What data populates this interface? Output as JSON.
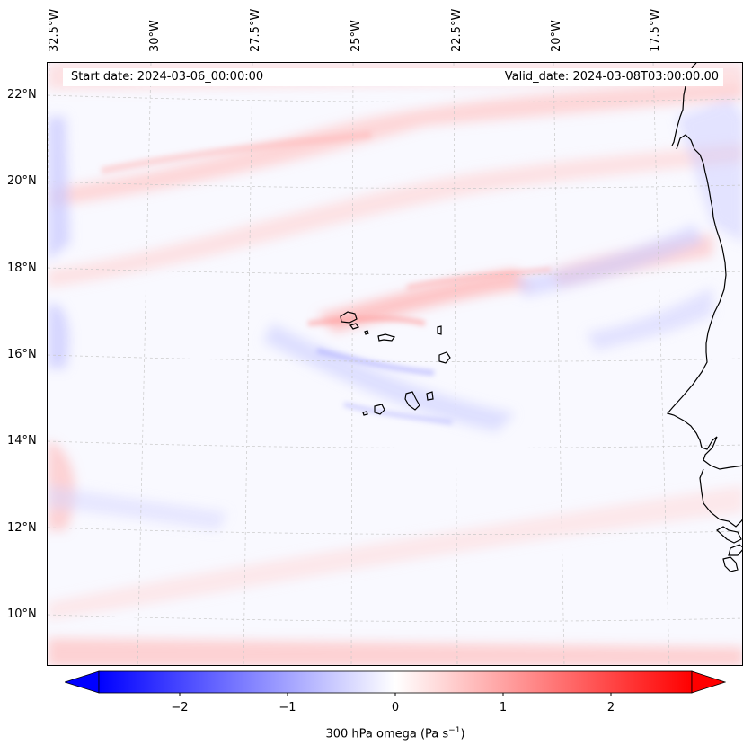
{
  "map": {
    "info": {
      "start_date": "Start date: 2024-03-06_00:00:00",
      "valid_date": "Valid_date: 2024-03-08T03:00:00.00"
    },
    "lon_labels": [
      "32.5°W",
      "30°W",
      "27.5°W",
      "25°W",
      "22.5°W",
      "20°W",
      "17.5°W"
    ],
    "lat_labels": [
      "22°N",
      "20°N",
      "18°N",
      "16°N",
      "14°N",
      "12°N",
      "10°N"
    ],
    "field": "300 hPa omega",
    "colors": {
      "negative": "#0000ff",
      "zero": "#ffffff",
      "positive": "#ff0000",
      "coastline": "#000000"
    }
  },
  "colorbar": {
    "label_main": "300 hPa omega (Pa s",
    "label_exp": "−1",
    "label_end": ")",
    "ticks": [
      "−2",
      "−1",
      "0",
      "1",
      "2"
    ],
    "tick_values": [
      -2,
      -1,
      0,
      1,
      2
    ],
    "range": [
      -2.75,
      2.75
    ]
  }
}
